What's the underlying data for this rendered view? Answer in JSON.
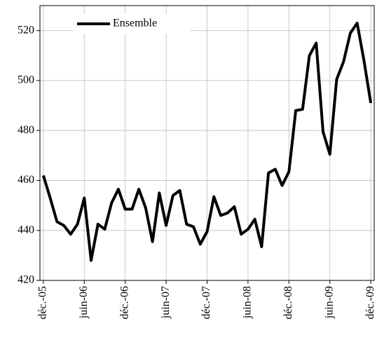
{
  "chart_data": {
    "type": "line",
    "categories": [
      "déc.-05",
      null,
      null,
      null,
      null,
      null,
      "juin-06",
      null,
      null,
      null,
      null,
      null,
      "déc.-06",
      null,
      null,
      null,
      null,
      null,
      "juin-07",
      null,
      null,
      null,
      null,
      null,
      "déc.-07",
      null,
      null,
      null,
      null,
      null,
      "juin-08",
      null,
      null,
      null,
      null,
      null,
      "déc.-08",
      null,
      null,
      null,
      null,
      null,
      "juin-09",
      null,
      null,
      null,
      null,
      null,
      "déc.-09"
    ],
    "series": [
      {
        "name": "Ensemble",
        "color": "#000000",
        "values": [
          462,
          453,
          443.5,
          442,
          438.5,
          442.5,
          453,
          428,
          442.5,
          440.5,
          451,
          456.5,
          448.5,
          448.5,
          456.5,
          449,
          435.5,
          455,
          442,
          454,
          456,
          442.5,
          441.5,
          434.5,
          439.5,
          453.5,
          446,
          447,
          449.5,
          438.5,
          440.5,
          444.5,
          433.5,
          463,
          464.5,
          458,
          463.5,
          488,
          488.5,
          510,
          515,
          479.5,
          470.5,
          500.5,
          507.5,
          519,
          523,
          508,
          491
        ]
      }
    ],
    "ylim": [
      420,
      530
    ],
    "yticks": [
      420,
      440,
      460,
      480,
      500,
      520
    ],
    "grid": true,
    "legend": "upper left"
  }
}
